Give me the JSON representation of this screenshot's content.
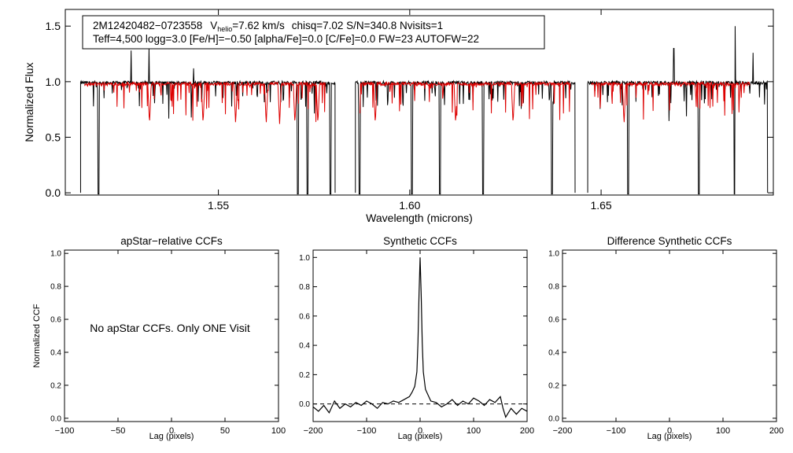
{
  "colors": {
    "observed": "#000000",
    "model": "#dd0000",
    "axis": "#000000",
    "zero_line": "#000000"
  },
  "top": {
    "info_line1": {
      "star_id": "2M12420482−0723558",
      "vhelio_V": "V",
      "vhelio_sub": "helio",
      "vhelio_value": "=7.62 km/s",
      "rest": "chisq=7.02  S/N=340.8  Nvisits=1"
    },
    "info_line2": "Teff=4,500 logg=3.0 [Fe/H]=−0.50 [alpha/Fe]=0.0 [C/Fe]=0.0 FW=23 AUTOFW=22"
  },
  "panels": {
    "apstar": {
      "title": "apStar−relative CCFs",
      "message": "No apStar CCFs.  Only ONE Visit"
    },
    "synthetic": {
      "title": "Synthetic CCFs"
    },
    "difference": {
      "title": "Difference Synthetic CCFs"
    }
  },
  "chart_data": [
    {
      "type": "line",
      "title": "",
      "xlabel": "Wavelength (microns)",
      "ylabel": "Normalized Flux",
      "xlim": [
        1.51,
        1.695
      ],
      "ylim": [
        -0.02,
        1.65
      ],
      "xticks": [
        1.55,
        1.6,
        1.65
      ],
      "xtick_labels": [
        "1.55",
        "1.60",
        "1.65"
      ],
      "yticks": [
        0.0,
        0.5,
        1.0,
        1.5
      ],
      "ytick_labels": [
        "0.0",
        "0.5",
        "1.0",
        "1.5"
      ],
      "series": [
        {
          "style": "observed spectrum",
          "chips": [
            [
              1.514,
              1.5805
            ],
            [
              1.5858,
              1.6432
            ],
            [
              1.6465,
              1.6935
            ]
          ],
          "continuum": 0.99,
          "deep_lines": [
            1.5187,
            1.5707,
            1.5733,
            1.5793,
            1.5869,
            1.6005,
            1.6079,
            1.6191,
            1.6371,
            1.657,
            1.6755,
            1.6849
          ],
          "emission_spikes": [
            [
              1.5272,
              1.28
            ],
            [
              1.5319,
              1.3
            ],
            [
              1.5435,
              1.12
            ],
            [
              1.669,
              1.3
            ],
            [
              1.685,
              1.5
            ],
            [
              1.6897,
              1.26
            ]
          ]
        },
        {
          "style": "model spectrum",
          "chips": [
            [
              1.515,
              1.578
            ],
            [
              1.587,
              1.642
            ],
            [
              1.6475,
              1.689
            ]
          ],
          "continuum": 0.98,
          "deep_lines": [
            1.532,
            1.546,
            1.5545,
            1.5625,
            1.566,
            1.57,
            1.576,
            1.591,
            1.612,
            1.627,
            1.643,
            1.656
          ]
        }
      ]
    },
    {
      "type": "line",
      "title": "apStar−relative CCFs",
      "xlabel": "Lag (pixels)",
      "ylabel": "Normalized CCF",
      "xlim": [
        -100,
        100
      ],
      "ylim": [
        -0.02,
        1.02
      ],
      "xticks": [
        -100,
        -50,
        0,
        50,
        100
      ],
      "xtick_labels": [
        "−100",
        "−50",
        "0",
        "50",
        "100"
      ],
      "yticks": [
        0.0,
        0.2,
        0.4,
        0.6,
        0.8,
        1.0
      ],
      "ytick_labels": [
        "0.0",
        "0.2",
        "0.4",
        "0.6",
        "0.8",
        "1.0"
      ],
      "series": []
    },
    {
      "type": "line",
      "title": "Synthetic CCFs",
      "xlabel": "Lag (pixels)",
      "ylabel": "",
      "xlim": [
        -200,
        200
      ],
      "ylim": [
        -0.12,
        1.05
      ],
      "xticks": [
        -200,
        -100,
        0,
        100,
        200
      ],
      "xtick_labels": [
        "−200",
        "−100",
        "0",
        "100",
        "200"
      ],
      "yticks": [
        0.0,
        0.2,
        0.4,
        0.6,
        0.8,
        1.0
      ],
      "ytick_labels": [
        "0.0",
        "0.2",
        "0.4",
        "0.6",
        "0.8",
        "1.0"
      ],
      "zero_line": 0.0,
      "series": [
        {
          "x": [
            -200,
            -190,
            -180,
            -170,
            -160,
            -150,
            -140,
            -130,
            -120,
            -110,
            -100,
            -90,
            -80,
            -70,
            -60,
            -50,
            -40,
            -30,
            -20,
            -15,
            -10,
            -6,
            -4,
            -2,
            0,
            2,
            4,
            6,
            10,
            15,
            20,
            30,
            40,
            50,
            60,
            70,
            80,
            90,
            100,
            110,
            120,
            130,
            140,
            150,
            155,
            160,
            165,
            170,
            180,
            190,
            200
          ],
          "y": [
            -0.02,
            -0.05,
            -0.01,
            -0.06,
            0.02,
            -0.03,
            0.0,
            -0.02,
            0.01,
            -0.01,
            0.02,
            0.0,
            -0.03,
            0.01,
            0.0,
            0.02,
            0.01,
            0.03,
            0.05,
            0.08,
            0.12,
            0.22,
            0.42,
            0.75,
            1.0,
            0.75,
            0.42,
            0.22,
            0.1,
            0.06,
            0.02,
            0.01,
            -0.02,
            0.0,
            0.03,
            -0.01,
            0.02,
            0.0,
            0.04,
            0.02,
            -0.01,
            0.03,
            0.01,
            0.05,
            -0.03,
            -0.09,
            -0.06,
            -0.03,
            -0.07,
            -0.03,
            -0.05
          ]
        }
      ]
    },
    {
      "type": "line",
      "title": "Difference Synthetic CCFs",
      "xlabel": "Lag (pixels)",
      "ylabel": "",
      "xlim": [
        -200,
        200
      ],
      "ylim": [
        -0.02,
        1.02
      ],
      "xticks": [
        -200,
        -100,
        0,
        100,
        200
      ],
      "xtick_labels": [
        "−200",
        "−100",
        "0",
        "100",
        "200"
      ],
      "yticks": [
        0.0,
        0.2,
        0.4,
        0.6,
        0.8,
        1.0
      ],
      "ytick_labels": [
        "0.0",
        "0.2",
        "0.4",
        "0.6",
        "0.8",
        "1.0"
      ],
      "series": []
    }
  ]
}
